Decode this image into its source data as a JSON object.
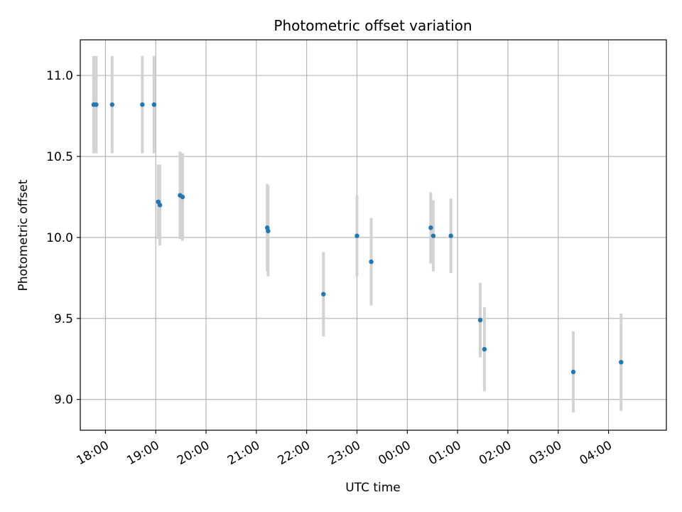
{
  "chart_data": {
    "type": "scatter",
    "title": "Photometric offset variation",
    "xlabel": "UTC time",
    "ylabel": "Photometric offset",
    "x_tick_labels": [
      "18:00",
      "19:00",
      "20:00",
      "21:00",
      "22:00",
      "23:00",
      "00:00",
      "01:00",
      "02:00",
      "03:00",
      "04:00"
    ],
    "y_tick_labels": [
      "9.0",
      "9.5",
      "10.0",
      "10.5",
      "11.0"
    ],
    "y_ticks": [
      9.0,
      9.5,
      10.0,
      10.5,
      11.0
    ],
    "ylim": [
      8.81,
      11.22
    ],
    "xlim": [
      "17:30",
      "05:09"
    ],
    "grid": true,
    "colors": {
      "points": "#1f77b4",
      "errorbars": "#d3d3d3",
      "grid": "#b0b0b0"
    },
    "points": [
      {
        "x": "17:46",
        "y": 10.82,
        "err": 0.3
      },
      {
        "x": "17:49",
        "y": 10.82,
        "err": 0.3
      },
      {
        "x": "18:08",
        "y": 10.82,
        "err": 0.3
      },
      {
        "x": "18:44",
        "y": 10.82,
        "err": 0.3
      },
      {
        "x": "18:58",
        "y": 10.82,
        "err": 0.3
      },
      {
        "x": "19:03",
        "y": 10.22,
        "err": 0.23
      },
      {
        "x": "19:05",
        "y": 10.2,
        "err": 0.25
      },
      {
        "x": "19:29",
        "y": 10.26,
        "err": 0.27
      },
      {
        "x": "19:32",
        "y": 10.25,
        "err": 0.27
      },
      {
        "x": "21:13",
        "y": 10.06,
        "err": 0.27
      },
      {
        "x": "21:14",
        "y": 10.04,
        "err": 0.28
      },
      {
        "x": "22:20",
        "y": 9.65,
        "err": 0.26
      },
      {
        "x": "23:00",
        "y": 10.01,
        "err": 0.25
      },
      {
        "x": "23:17",
        "y": 9.85,
        "err": 0.27
      },
      {
        "x": "00:28",
        "y": 10.06,
        "err": 0.22
      },
      {
        "x": "00:31",
        "y": 10.01,
        "err": 0.22
      },
      {
        "x": "00:52",
        "y": 10.01,
        "err": 0.23
      },
      {
        "x": "01:27",
        "y": 9.49,
        "err": 0.23
      },
      {
        "x": "01:32",
        "y": 9.31,
        "err": 0.26
      },
      {
        "x": "03:18",
        "y": 9.17,
        "err": 0.25
      },
      {
        "x": "04:15",
        "y": 9.23,
        "err": 0.3
      }
    ]
  }
}
